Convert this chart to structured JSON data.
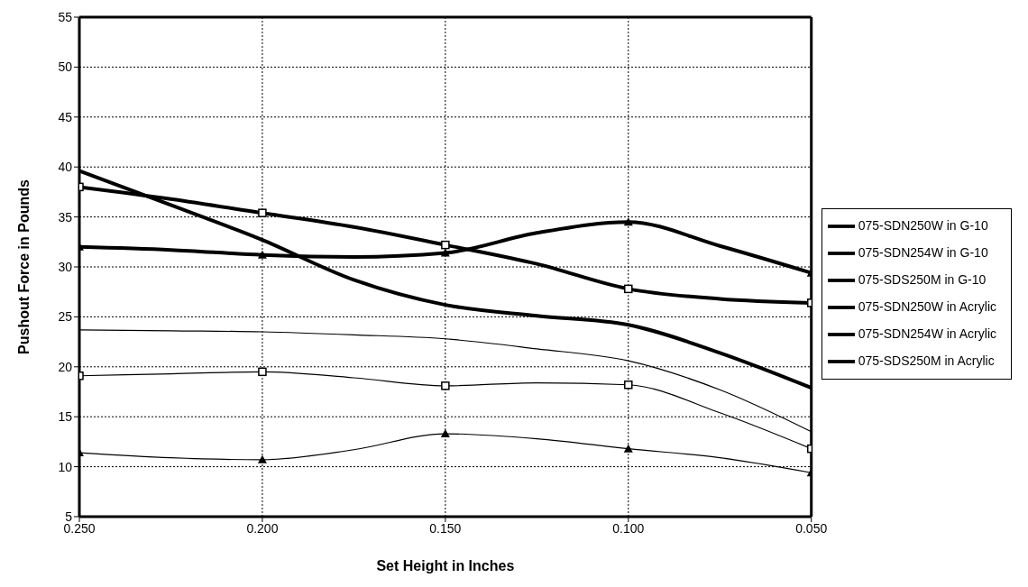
{
  "chart_data": {
    "type": "line",
    "xlabel": "Set Height in Inches",
    "ylabel": "Pushout Force in Pounds",
    "x": [
      0.25,
      0.225,
      0.2,
      0.175,
      0.15,
      0.125,
      0.1,
      0.075,
      0.05
    ],
    "xlim": [
      0.25,
      0.05
    ],
    "xticks": [
      {
        "value": 0.25,
        "label": "0.250"
      },
      {
        "value": 0.2,
        "label": "0.200"
      },
      {
        "value": 0.15,
        "label": "0.150"
      },
      {
        "value": 0.1,
        "label": "0.100"
      },
      {
        "value": 0.05,
        "label": "0.050"
      }
    ],
    "ylim": [
      5,
      55
    ],
    "yticks": [
      5,
      10,
      15,
      20,
      25,
      30,
      35,
      40,
      45,
      50,
      55
    ],
    "grid": true,
    "legend": "right",
    "line_style": "solid",
    "series": [
      {
        "name": "075-SDN250W in G-10",
        "color": "#000000",
        "marker": "none",
        "values": [
          39.6,
          36.2,
          32.7,
          28.7,
          26.2,
          25.1,
          24.2,
          21.4,
          17.9
        ]
      },
      {
        "name": "075-SDN254W in G-10",
        "color": "#000000",
        "marker": "square",
        "values": [
          38.0,
          36.8,
          35.4,
          34.0,
          32.2,
          30.3,
          27.8,
          26.8,
          26.4
        ]
      },
      {
        "name": "075-SDS250M in G-10",
        "color": "#000000",
        "marker": "triangle",
        "values": [
          32.0,
          31.7,
          31.2,
          31.0,
          31.4,
          33.4,
          34.5,
          32.1,
          29.4
        ]
      },
      {
        "name": "075-SDN250W in Acrylic",
        "color": "#000000",
        "marker": "none",
        "values": [
          23.7,
          23.6,
          23.5,
          23.2,
          22.8,
          21.8,
          20.6,
          17.7,
          13.5
        ]
      },
      {
        "name": "075-SDN254W in Acrylic",
        "color": "#000000",
        "marker": "square",
        "values": [
          19.1,
          19.3,
          19.5,
          18.9,
          18.1,
          18.4,
          18.2,
          15.4,
          11.8
        ]
      },
      {
        "name": "075-SDS250M in Acrylic",
        "color": "#000000",
        "marker": "triangle",
        "values": [
          11.4,
          10.9,
          10.7,
          11.7,
          13.3,
          12.8,
          11.8,
          10.9,
          9.4
        ]
      }
    ]
  }
}
